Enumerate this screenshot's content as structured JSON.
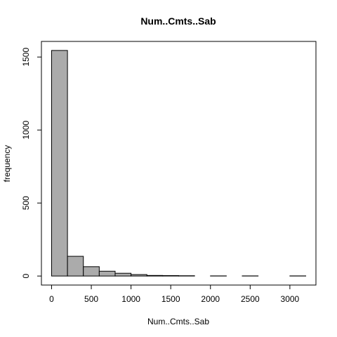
{
  "chart_data": {
    "type": "bar",
    "title": "Num..Cmts..Sab",
    "xlabel": "Num..Cmts..Sab",
    "ylabel": "frequency",
    "bins": [
      {
        "from": 0,
        "to": 200,
        "count": 1545
      },
      {
        "from": 200,
        "to": 400,
        "count": 135
      },
      {
        "from": 400,
        "to": 600,
        "count": 64
      },
      {
        "from": 600,
        "to": 800,
        "count": 33
      },
      {
        "from": 800,
        "to": 1000,
        "count": 19
      },
      {
        "from": 1000,
        "to": 1200,
        "count": 10
      },
      {
        "from": 1200,
        "to": 1400,
        "count": 4
      },
      {
        "from": 1400,
        "to": 1600,
        "count": 3
      },
      {
        "from": 1600,
        "to": 1800,
        "count": 2
      },
      {
        "from": 1800,
        "to": 2000,
        "count": 0
      },
      {
        "from": 2000,
        "to": 2200,
        "count": 1
      },
      {
        "from": 2200,
        "to": 2400,
        "count": 0
      },
      {
        "from": 2400,
        "to": 2600,
        "count": 1
      },
      {
        "from": 2600,
        "to": 2800,
        "count": 0
      },
      {
        "from": 2800,
        "to": 3000,
        "count": 0
      },
      {
        "from": 3000,
        "to": 3200,
        "count": 1
      }
    ],
    "xticks": [
      "0",
      "500",
      "1000",
      "1500",
      "2000",
      "2500",
      "3000"
    ],
    "yticks": [
      "0",
      "500",
      "1000",
      "1500"
    ],
    "xlim": [
      -128,
      3328
    ],
    "ylim": [
      -61.8,
      1606.8
    ],
    "grid": false,
    "colors": {
      "bar_fill": "#ababab",
      "bar_stroke": "#000000"
    }
  }
}
